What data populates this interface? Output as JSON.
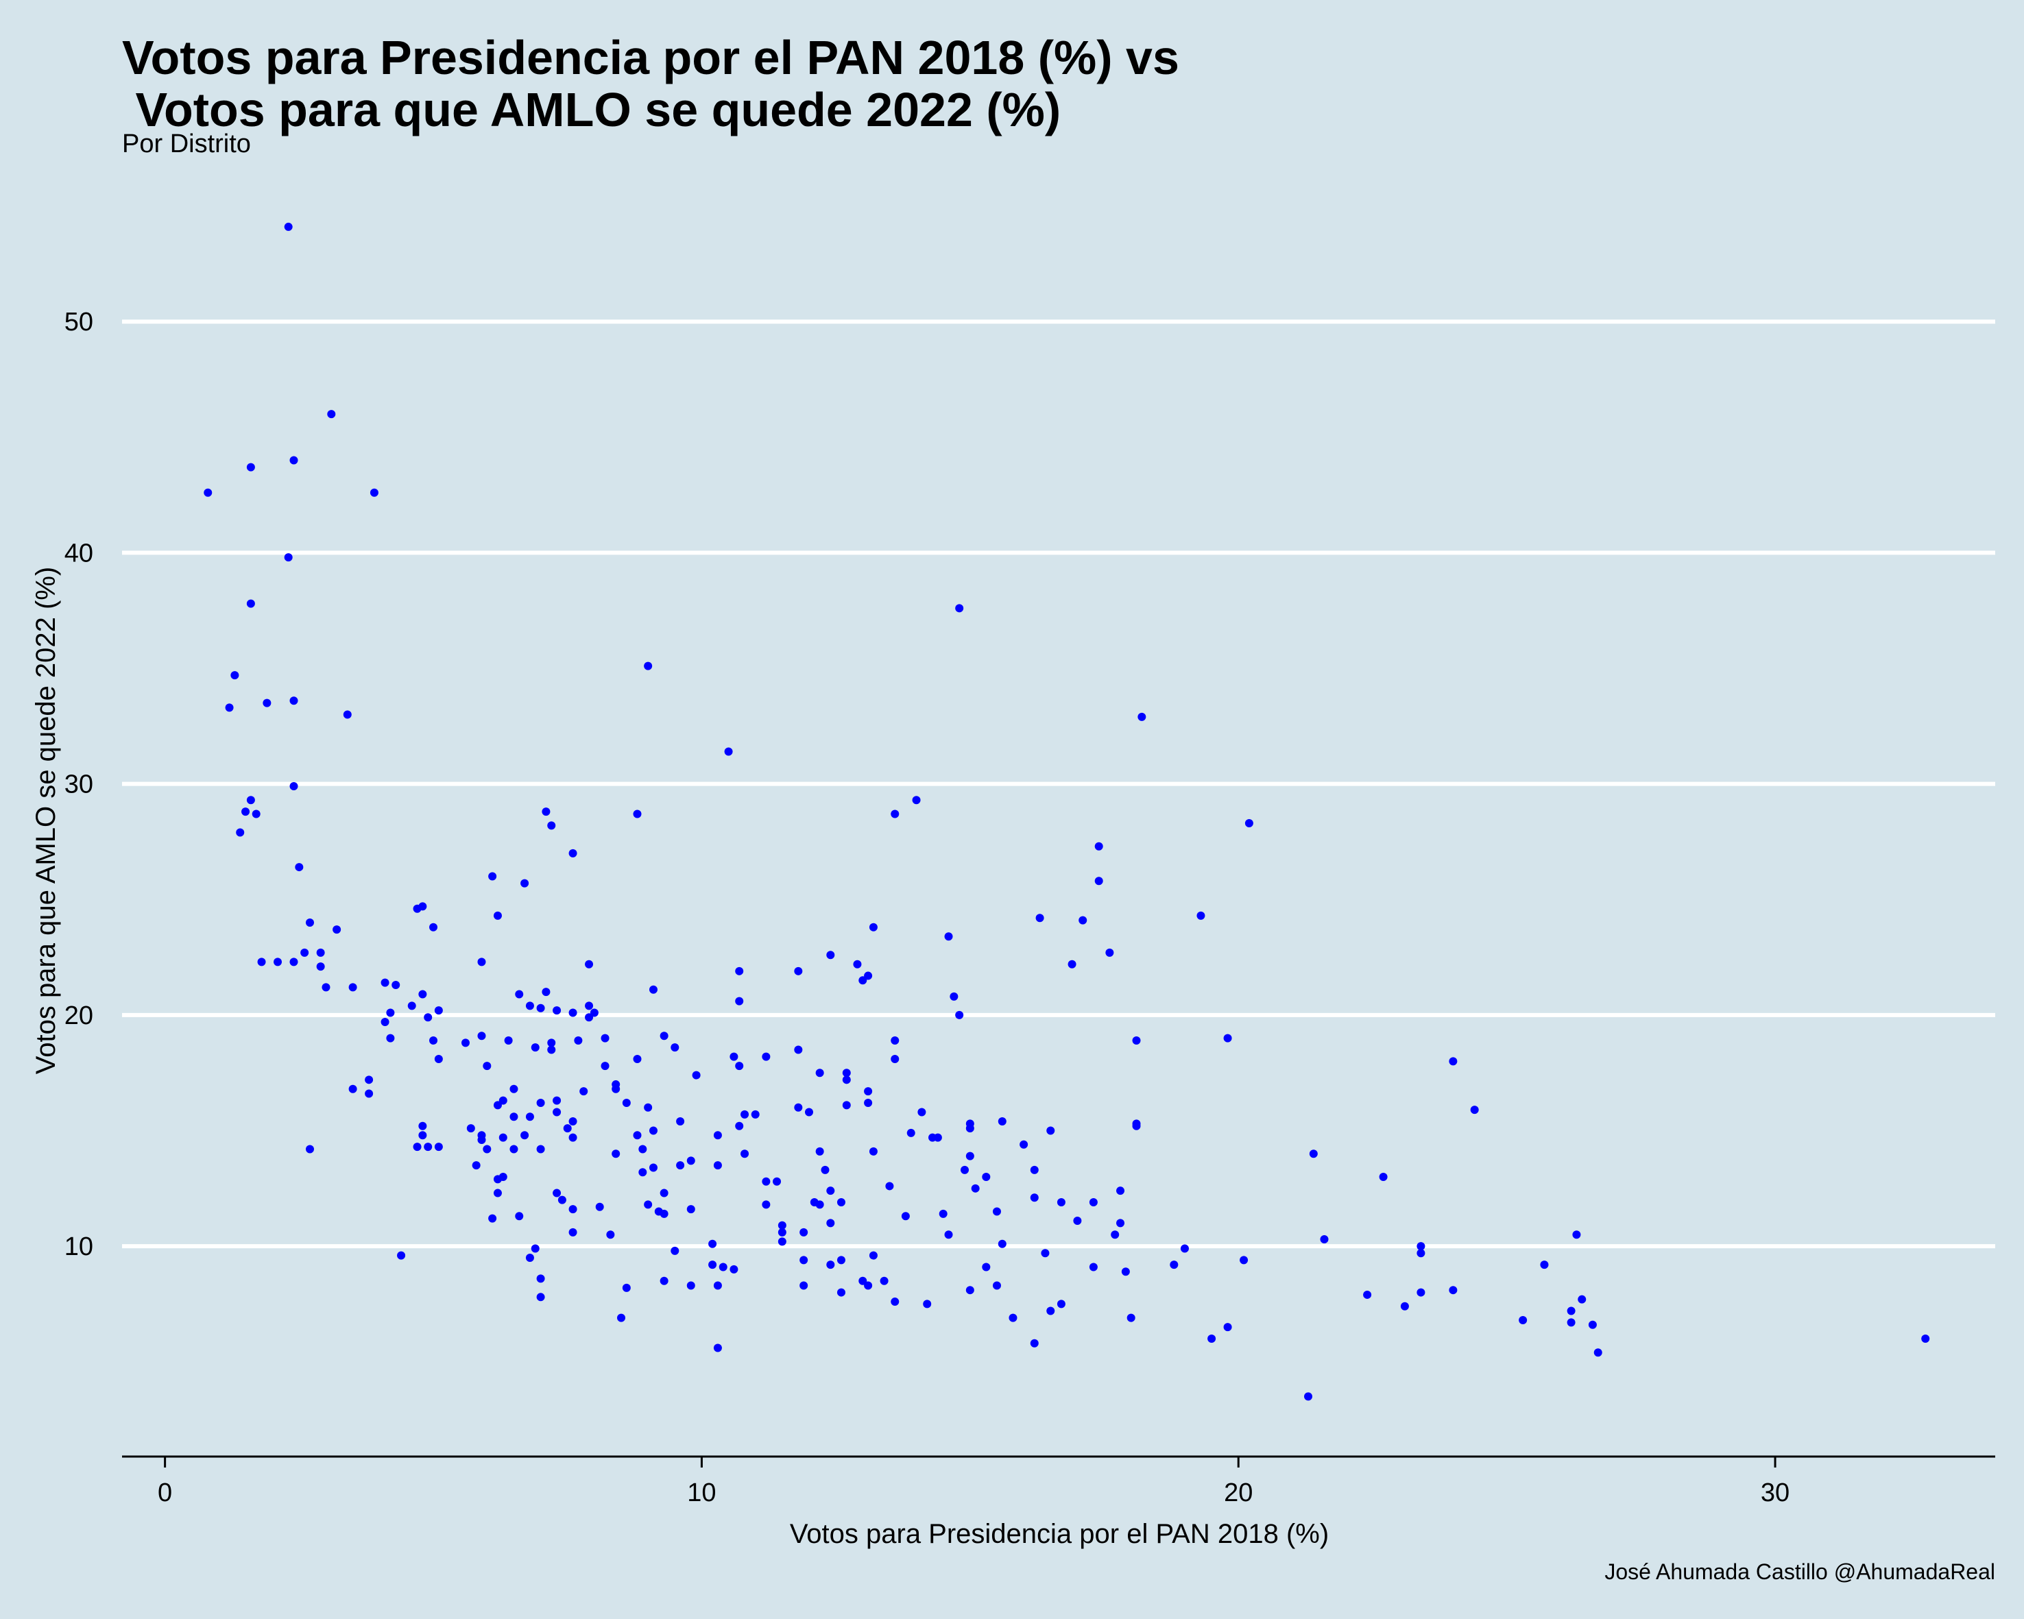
{
  "chart_data": {
    "type": "scatter",
    "title": "Votos para Presidencia por el PAN 2018 (%) vs\n Votos para que AMLO se quede 2022 (%)",
    "subtitle": "Por Distrito",
    "xlabel": "Votos para Presidencia por el PAN 2018 (%)",
    "ylabel": "Votos para que AMLO se quede 2022 (%)",
    "caption": "José Ahumada Castillo @AhumadaReal",
    "x_ticks": [
      0,
      10,
      20,
      30
    ],
    "y_ticks": [
      10,
      20,
      30,
      40,
      50
    ],
    "xlim": [
      -0.8,
      34.1
    ],
    "ylim": [
      0.9,
      56.5
    ],
    "grid": "horizontal-major",
    "point_color": "#0000ff",
    "points": [
      [
        2.3,
        54.1
      ],
      [
        3.1,
        46.0
      ],
      [
        2.4,
        44.0
      ],
      [
        1.6,
        43.7
      ],
      [
        0.8,
        42.6
      ],
      [
        3.9,
        42.6
      ],
      [
        2.3,
        39.8
      ],
      [
        1.6,
        37.8
      ],
      [
        14.8,
        37.6
      ],
      [
        1.3,
        34.7
      ],
      [
        9.0,
        35.1
      ],
      [
        1.2,
        33.3
      ],
      [
        1.9,
        33.5
      ],
      [
        2.4,
        33.6
      ],
      [
        3.4,
        33.0
      ],
      [
        18.2,
        32.9
      ],
      [
        10.5,
        31.4
      ],
      [
        2.4,
        29.9
      ],
      [
        1.6,
        29.3
      ],
      [
        1.5,
        28.8
      ],
      [
        1.7,
        28.7
      ],
      [
        1.4,
        27.9
      ],
      [
        8.8,
        28.7
      ],
      [
        7.1,
        28.8
      ],
      [
        7.2,
        28.2
      ],
      [
        13.6,
        28.7
      ],
      [
        14.0,
        29.3
      ],
      [
        20.2,
        28.3
      ],
      [
        2.5,
        26.4
      ],
      [
        7.6,
        27.0
      ],
      [
        17.4,
        27.3
      ],
      [
        6.1,
        26.0
      ],
      [
        6.7,
        25.7
      ],
      [
        17.4,
        25.8
      ],
      [
        4.8,
        24.7
      ],
      [
        4.7,
        24.6
      ],
      [
        6.2,
        24.3
      ],
      [
        16.3,
        24.2
      ],
      [
        17.1,
        24.1
      ],
      [
        19.3,
        24.3
      ],
      [
        2.7,
        24.0
      ],
      [
        3.2,
        23.7
      ],
      [
        5.0,
        23.8
      ],
      [
        13.2,
        23.8
      ],
      [
        14.6,
        23.4
      ],
      [
        2.6,
        22.7
      ],
      [
        2.9,
        22.7
      ],
      [
        2.9,
        22.1
      ],
      [
        1.8,
        22.3
      ],
      [
        2.1,
        22.3
      ],
      [
        2.4,
        22.3
      ],
      [
        5.9,
        22.3
      ],
      [
        7.9,
        22.2
      ],
      [
        12.4,
        22.6
      ],
      [
        12.9,
        22.2
      ],
      [
        17.6,
        22.7
      ],
      [
        16.9,
        22.2
      ],
      [
        13.1,
        21.7
      ],
      [
        13.0,
        21.5
      ],
      [
        10.7,
        21.9
      ],
      [
        11.8,
        21.9
      ],
      [
        3.0,
        21.2
      ],
      [
        3.5,
        21.2
      ],
      [
        4.1,
        21.4
      ],
      [
        4.3,
        21.3
      ],
      [
        9.1,
        21.1
      ],
      [
        6.6,
        20.9
      ],
      [
        7.1,
        21.0
      ],
      [
        4.6,
        20.4
      ],
      [
        4.8,
        20.9
      ],
      [
        6.8,
        20.4
      ],
      [
        7.0,
        20.3
      ],
      [
        7.3,
        20.2
      ],
      [
        7.9,
        20.4
      ],
      [
        8.0,
        20.1
      ],
      [
        10.7,
        20.6
      ],
      [
        14.7,
        20.8
      ],
      [
        4.2,
        20.1
      ],
      [
        4.1,
        19.7
      ],
      [
        4.9,
        19.9
      ],
      [
        5.1,
        20.2
      ],
      [
        7.6,
        20.1
      ],
      [
        7.9,
        19.9
      ],
      [
        14.8,
        20.0
      ],
      [
        4.2,
        19.0
      ],
      [
        5.0,
        18.9
      ],
      [
        5.6,
        18.8
      ],
      [
        5.9,
        19.1
      ],
      [
        6.4,
        18.9
      ],
      [
        7.2,
        18.8
      ],
      [
        7.7,
        18.9
      ],
      [
        8.2,
        19.0
      ],
      [
        9.3,
        19.1
      ],
      [
        13.6,
        18.9
      ],
      [
        19.8,
        19.0
      ],
      [
        18.1,
        18.9
      ],
      [
        6.9,
        18.6
      ],
      [
        7.2,
        18.5
      ],
      [
        9.5,
        18.6
      ],
      [
        11.8,
        18.5
      ],
      [
        5.1,
        18.1
      ],
      [
        6.0,
        17.8
      ],
      [
        8.2,
        17.8
      ],
      [
        8.8,
        18.1
      ],
      [
        10.6,
        18.2
      ],
      [
        11.2,
        18.2
      ],
      [
        10.7,
        17.8
      ],
      [
        12.2,
        17.5
      ],
      [
        12.7,
        17.5
      ],
      [
        13.6,
        18.1
      ],
      [
        9.9,
        17.4
      ],
      [
        12.7,
        17.2
      ],
      [
        24.0,
        18.0
      ],
      [
        3.8,
        17.2
      ],
      [
        3.8,
        16.6
      ],
      [
        3.5,
        16.8
      ],
      [
        6.5,
        16.8
      ],
      [
        7.3,
        16.3
      ],
      [
        7.8,
        16.7
      ],
      [
        8.4,
        17.0
      ],
      [
        8.4,
        16.8
      ],
      [
        6.2,
        16.1
      ],
      [
        6.3,
        16.3
      ],
      [
        7.0,
        16.2
      ],
      [
        7.3,
        15.8
      ],
      [
        8.6,
        16.2
      ],
      [
        9.0,
        16.0
      ],
      [
        11.8,
        16.0
      ],
      [
        12.7,
        16.1
      ],
      [
        13.1,
        16.7
      ],
      [
        13.1,
        16.2
      ],
      [
        24.4,
        15.9
      ],
      [
        6.5,
        15.6
      ],
      [
        6.8,
        15.6
      ],
      [
        7.6,
        15.4
      ],
      [
        10.8,
        15.7
      ],
      [
        11.0,
        15.7
      ],
      [
        12.0,
        15.8
      ],
      [
        14.1,
        15.8
      ],
      [
        15.6,
        15.4
      ],
      [
        10.7,
        15.2
      ],
      [
        9.6,
        15.4
      ],
      [
        7.5,
        15.1
      ],
      [
        4.8,
        15.2
      ],
      [
        4.8,
        14.8
      ],
      [
        5.7,
        15.1
      ],
      [
        5.9,
        14.8
      ],
      [
        5.9,
        14.6
      ],
      [
        6.3,
        14.7
      ],
      [
        6.7,
        14.8
      ],
      [
        7.6,
        14.7
      ],
      [
        8.8,
        14.8
      ],
      [
        9.1,
        15.0
      ],
      [
        10.3,
        14.8
      ],
      [
        13.9,
        14.9
      ],
      [
        14.4,
        14.7
      ],
      [
        14.3,
        14.7
      ],
      [
        15.0,
        15.1
      ],
      [
        15.0,
        15.3
      ],
      [
        16.5,
        15.0
      ],
      [
        18.1,
        15.3
      ],
      [
        18.1,
        15.2
      ],
      [
        16.0,
        14.4
      ],
      [
        4.9,
        14.3
      ],
      [
        4.7,
        14.3
      ],
      [
        5.1,
        14.3
      ],
      [
        6.0,
        14.2
      ],
      [
        6.5,
        14.2
      ],
      [
        7.0,
        14.2
      ],
      [
        2.7,
        14.2
      ],
      [
        8.4,
        14.0
      ],
      [
        8.9,
        14.2
      ],
      [
        10.8,
        14.0
      ],
      [
        12.2,
        14.1
      ],
      [
        13.2,
        14.1
      ],
      [
        21.4,
        14.0
      ],
      [
        15.0,
        13.9
      ],
      [
        5.8,
        13.5
      ],
      [
        8.9,
        13.2
      ],
      [
        9.1,
        13.4
      ],
      [
        9.6,
        13.5
      ],
      [
        9.8,
        13.7
      ],
      [
        10.3,
        13.5
      ],
      [
        12.3,
        13.3
      ],
      [
        14.9,
        13.3
      ],
      [
        15.3,
        13.0
      ],
      [
        16.2,
        13.3
      ],
      [
        22.7,
        13.0
      ],
      [
        6.3,
        13.0
      ],
      [
        6.2,
        12.9
      ],
      [
        11.2,
        12.8
      ],
      [
        11.4,
        12.8
      ],
      [
        13.5,
        12.6
      ],
      [
        15.1,
        12.5
      ],
      [
        9.3,
        12.3
      ],
      [
        12.4,
        12.4
      ],
      [
        17.8,
        12.4
      ],
      [
        6.2,
        12.3
      ],
      [
        7.3,
        12.3
      ],
      [
        7.4,
        12.0
      ],
      [
        12.1,
        11.9
      ],
      [
        12.2,
        11.8
      ],
      [
        12.6,
        11.9
      ],
      [
        11.2,
        11.8
      ],
      [
        9.0,
        11.8
      ],
      [
        9.2,
        11.5
      ],
      [
        9.3,
        11.4
      ],
      [
        9.8,
        11.6
      ],
      [
        8.1,
        11.7
      ],
      [
        7.6,
        11.6
      ],
      [
        6.6,
        11.3
      ],
      [
        6.1,
        11.2
      ],
      [
        13.8,
        11.3
      ],
      [
        14.5,
        11.4
      ],
      [
        15.5,
        11.5
      ],
      [
        16.7,
        11.9
      ],
      [
        17.3,
        11.9
      ],
      [
        16.2,
        12.1
      ],
      [
        17.0,
        11.1
      ],
      [
        17.8,
        11.0
      ],
      [
        12.4,
        11.0
      ],
      [
        11.5,
        10.9
      ],
      [
        11.5,
        10.6
      ],
      [
        11.9,
        10.6
      ],
      [
        7.6,
        10.6
      ],
      [
        8.3,
        10.5
      ],
      [
        14.6,
        10.5
      ],
      [
        17.7,
        10.5
      ],
      [
        21.6,
        10.3
      ],
      [
        26.3,
        10.5
      ],
      [
        11.5,
        10.2
      ],
      [
        10.2,
        10.1
      ],
      [
        15.6,
        10.1
      ],
      [
        23.4,
        10.0
      ],
      [
        9.5,
        9.8
      ],
      [
        6.9,
        9.9
      ],
      [
        19.0,
        9.9
      ],
      [
        23.4,
        9.7
      ],
      [
        4.4,
        9.6
      ],
      [
        6.8,
        9.5
      ],
      [
        13.2,
        9.6
      ],
      [
        16.4,
        9.7
      ],
      [
        11.9,
        9.4
      ],
      [
        12.6,
        9.4
      ],
      [
        12.4,
        9.2
      ],
      [
        10.2,
        9.2
      ],
      [
        10.4,
        9.1
      ],
      [
        10.6,
        9.0
      ],
      [
        15.3,
        9.1
      ],
      [
        17.3,
        9.1
      ],
      [
        18.8,
        9.2
      ],
      [
        20.1,
        9.4
      ],
      [
        25.7,
        9.2
      ],
      [
        17.9,
        8.9
      ],
      [
        7.0,
        8.6
      ],
      [
        9.3,
        8.5
      ],
      [
        9.8,
        8.3
      ],
      [
        10.3,
        8.3
      ],
      [
        8.6,
        8.2
      ],
      [
        11.9,
        8.3
      ],
      [
        13.0,
        8.5
      ],
      [
        13.1,
        8.3
      ],
      [
        13.4,
        8.5
      ],
      [
        15.0,
        8.1
      ],
      [
        15.5,
        8.3
      ],
      [
        12.6,
        8.0
      ],
      [
        7.0,
        7.8
      ],
      [
        13.6,
        7.6
      ],
      [
        14.2,
        7.5
      ],
      [
        16.7,
        7.5
      ],
      [
        16.5,
        7.2
      ],
      [
        22.4,
        7.9
      ],
      [
        23.4,
        8.0
      ],
      [
        24.0,
        8.1
      ],
      [
        23.1,
        7.4
      ],
      [
        26.4,
        7.7
      ],
      [
        26.2,
        7.2
      ],
      [
        26.2,
        6.7
      ],
      [
        26.6,
        6.6
      ],
      [
        25.3,
        6.8
      ],
      [
        8.5,
        6.9
      ],
      [
        15.8,
        6.9
      ],
      [
        18.0,
        6.9
      ],
      [
        19.8,
        6.5
      ],
      [
        19.5,
        6.0
      ],
      [
        16.2,
        5.8
      ],
      [
        10.3,
        5.6
      ],
      [
        26.7,
        5.4
      ],
      [
        32.8,
        6.0
      ],
      [
        21.3,
        3.5
      ]
    ]
  }
}
